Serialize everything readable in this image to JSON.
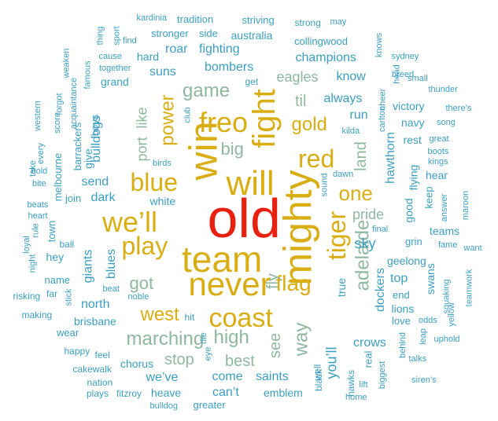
{
  "palette": {
    "red": "#e8200f",
    "gold": "#d8ae14",
    "sage": "#8fb79f",
    "teal": "#3c9ebf",
    "blue": "#5aa5c9"
  },
  "words": [
    {
      "text": "old",
      "color": "red",
      "weight": 1.0
    },
    {
      "text": "mighty",
      "color": "gold",
      "weight": 0.88
    },
    {
      "text": "team",
      "color": "gold",
      "weight": 0.82
    },
    {
      "text": "win",
      "color": "gold",
      "weight": 0.8
    },
    {
      "text": "never",
      "color": "gold",
      "weight": 0.75
    },
    {
      "text": "will",
      "color": "gold",
      "weight": 0.75
    },
    {
      "text": "fight",
      "color": "gold",
      "weight": 0.7
    },
    {
      "text": "we’ll",
      "color": "gold",
      "weight": 0.62
    },
    {
      "text": "freo",
      "color": "gold",
      "weight": 0.58
    },
    {
      "text": "coast",
      "color": "gold",
      "weight": 0.58
    },
    {
      "text": "tiger",
      "color": "gold",
      "weight": 0.58
    },
    {
      "text": "red",
      "color": "gold",
      "weight": 0.55
    },
    {
      "text": "blue",
      "color": "gold",
      "weight": 0.55
    },
    {
      "text": "play",
      "color": "gold",
      "weight": 0.55
    },
    {
      "text": "flag",
      "color": "gold",
      "weight": 0.48
    },
    {
      "text": "one",
      "color": "gold",
      "weight": 0.45
    },
    {
      "text": "game",
      "color": "sage",
      "weight": 0.45
    },
    {
      "text": "adelaide",
      "color": "sage",
      "weight": 0.44
    },
    {
      "text": "high",
      "color": "sage",
      "weight": 0.42
    },
    {
      "text": "power",
      "color": "gold",
      "weight": 0.44
    },
    {
      "text": "gold",
      "color": "gold",
      "weight": 0.42
    },
    {
      "text": "way",
      "color": "sage",
      "weight": 0.42
    },
    {
      "text": "marching",
      "color": "sage",
      "weight": 0.42
    },
    {
      "text": "west",
      "color": "gold",
      "weight": 0.4
    },
    {
      "text": "got",
      "color": "sage",
      "weight": 0.4
    },
    {
      "text": "big",
      "color": "sage",
      "weight": 0.38
    },
    {
      "text": "fly",
      "color": "sage",
      "weight": 0.36
    },
    {
      "text": "see",
      "color": "sage",
      "weight": 0.36
    },
    {
      "text": "best",
      "color": "sage",
      "weight": 0.36
    },
    {
      "text": "stop",
      "color": "sage",
      "weight": 0.34
    },
    {
      "text": "land",
      "color": "sage",
      "weight": 0.34
    },
    {
      "text": "til",
      "color": "sage",
      "weight": 0.34
    },
    {
      "text": "port",
      "color": "sage",
      "weight": 0.32
    },
    {
      "text": "like",
      "color": "sage",
      "weight": 0.32
    },
    {
      "text": "pride",
      "color": "sage",
      "weight": 0.32
    },
    {
      "text": "eagles",
      "color": "sage",
      "weight": 0.32
    },
    {
      "text": "hawthorn",
      "color": "teal",
      "weight": 0.32
    },
    {
      "text": "sky",
      "color": "teal",
      "weight": 0.3
    },
    {
      "text": "you’ll",
      "color": "teal",
      "weight": 0.32
    },
    {
      "text": "fighting",
      "color": "teal",
      "weight": 0.3
    },
    {
      "text": "bombers",
      "color": "teal",
      "weight": 0.3
    },
    {
      "text": "champions",
      "color": "teal",
      "weight": 0.28
    },
    {
      "text": "send",
      "color": "teal",
      "weight": 0.3
    },
    {
      "text": "dark",
      "color": "teal",
      "weight": 0.28
    },
    {
      "text": "north",
      "color": "teal",
      "weight": 0.28
    },
    {
      "text": "saints",
      "color": "teal",
      "weight": 0.28
    },
    {
      "text": "come",
      "color": "teal",
      "weight": 0.28
    },
    {
      "text": "we’ve",
      "color": "teal",
      "weight": 0.28
    },
    {
      "text": "can’t",
      "color": "teal",
      "weight": 0.28
    },
    {
      "text": "giants",
      "color": "teal",
      "weight": 0.28
    },
    {
      "text": "blues",
      "color": "teal",
      "weight": 0.26
    },
    {
      "text": "bulldogs",
      "color": "teal",
      "weight": 0.26
    },
    {
      "text": "crows",
      "color": "teal",
      "weight": 0.26
    },
    {
      "text": "top",
      "color": "teal",
      "weight": 0.26
    },
    {
      "text": "dockers",
      "color": "teal",
      "weight": 0.26
    },
    {
      "text": "good",
      "color": "teal",
      "weight": 0.26
    },
    {
      "text": "flying",
      "color": "teal",
      "weight": 0.26
    },
    {
      "text": "always",
      "color": "teal",
      "weight": 0.26
    },
    {
      "text": "run",
      "color": "teal",
      "weight": 0.26
    },
    {
      "text": "know",
      "color": "teal",
      "weight": 0.26
    },
    {
      "text": "roar",
      "color": "teal",
      "weight": 0.26
    },
    {
      "text": "suns",
      "color": "teal",
      "weight": 0.26
    },
    {
      "text": "true",
      "color": "teal",
      "weight": 0.26
    },
    {
      "text": "chorus",
      "color": "teal",
      "weight": 0.24
    },
    {
      "text": "brisbane",
      "color": "teal",
      "weight": 0.22
    },
    {
      "text": "heave",
      "color": "teal",
      "weight": 0.22
    },
    {
      "text": "emblem",
      "color": "teal",
      "weight": 0.22
    },
    {
      "text": "white",
      "color": "teal",
      "weight": 0.22
    },
    {
      "text": "give",
      "color": "teal",
      "weight": 0.22
    },
    {
      "text": "rest",
      "color": "teal",
      "weight": 0.22
    },
    {
      "text": "geelong",
      "color": "teal",
      "weight": 0.22
    },
    {
      "text": "hawks",
      "color": "teal",
      "weight": 0.2
    },
    {
      "text": "lions",
      "color": "teal",
      "weight": 0.2
    },
    {
      "text": "swans",
      "color": "teal",
      "weight": 0.22
    },
    {
      "text": "victory",
      "color": "teal",
      "weight": 0.22
    },
    {
      "text": "navy",
      "color": "teal",
      "weight": 0.22
    },
    {
      "text": "hard",
      "color": "teal",
      "weight": 0.22
    },
    {
      "text": "grand",
      "color": "teal",
      "weight": 0.22
    },
    {
      "text": "australia",
      "color": "teal",
      "weight": 0.22
    },
    {
      "text": "stronger",
      "color": "teal",
      "weight": 0.2
    },
    {
      "text": "tradition",
      "color": "teal",
      "weight": 0.2
    },
    {
      "text": "striving",
      "color": "teal",
      "weight": 0.2
    },
    {
      "text": "strong",
      "color": "teal",
      "weight": 0.18
    },
    {
      "text": "collingwood",
      "color": "teal",
      "weight": 0.2
    },
    {
      "text": "teams",
      "color": "teal",
      "weight": 0.2
    },
    {
      "text": "hear",
      "color": "teal",
      "weight": 0.2
    },
    {
      "text": "keep",
      "color": "teal",
      "weight": 0.2
    },
    {
      "text": "end",
      "color": "teal",
      "weight": 0.2
    },
    {
      "text": "love",
      "color": "teal",
      "weight": 0.2
    },
    {
      "text": "real",
      "color": "teal",
      "weight": 0.2
    },
    {
      "text": "well",
      "color": "teal",
      "weight": 0.18
    },
    {
      "text": "black",
      "color": "teal",
      "weight": 0.18
    },
    {
      "text": "side",
      "color": "teal",
      "weight": 0.2
    },
    {
      "text": "name",
      "color": "teal",
      "weight": 0.2
    },
    {
      "text": "hey",
      "color": "teal",
      "weight": 0.2
    },
    {
      "text": "ball",
      "color": "teal",
      "weight": 0.18
    },
    {
      "text": "join",
      "color": "teal",
      "weight": 0.18
    },
    {
      "text": "town",
      "color": "teal",
      "weight": 0.18
    },
    {
      "text": "wear",
      "color": "teal",
      "weight": 0.18
    },
    {
      "text": "happy",
      "color": "teal",
      "weight": 0.16
    },
    {
      "text": "feel",
      "color": "teal",
      "weight": 0.16
    },
    {
      "text": "cakewalk",
      "color": "teal",
      "weight": 0.16
    },
    {
      "text": "nation",
      "color": "teal",
      "weight": 0.16
    },
    {
      "text": "plays",
      "color": "teal",
      "weight": 0.16
    },
    {
      "text": "fitzroy",
      "color": "teal",
      "weight": 0.16
    },
    {
      "text": "making",
      "color": "teal",
      "weight": 0.16
    },
    {
      "text": "risking",
      "color": "teal",
      "weight": 0.16
    },
    {
      "text": "far",
      "color": "teal",
      "weight": 0.16
    },
    {
      "text": "stick",
      "color": "teal",
      "weight": 0.14
    },
    {
      "text": "beat",
      "color": "teal",
      "weight": 0.14
    },
    {
      "text": "noble",
      "color": "teal",
      "weight": 0.14
    },
    {
      "text": "hit",
      "color": "teal",
      "weight": 0.16
    },
    {
      "text": "die",
      "color": "teal",
      "weight": 0.14
    },
    {
      "text": "eye",
      "color": "teal",
      "weight": 0.14
    },
    {
      "text": "birds",
      "color": "teal",
      "weight": 0.14
    },
    {
      "text": "club",
      "color": "teal",
      "weight": 0.14
    },
    {
      "text": "get",
      "color": "teal",
      "weight": 0.16
    },
    {
      "text": "kilda",
      "color": "teal",
      "weight": 0.14
    },
    {
      "text": "dawn",
      "color": "teal",
      "weight": 0.14
    },
    {
      "text": "sound",
      "color": "teal",
      "weight": 0.14
    },
    {
      "text": "final",
      "color": "teal",
      "weight": 0.14
    },
    {
      "text": "grin",
      "color": "teal",
      "weight": 0.16
    },
    {
      "text": "odds",
      "color": "teal",
      "weight": 0.14
    },
    {
      "text": "lift",
      "color": "teal",
      "weight": 0.14
    },
    {
      "text": "home",
      "color": "teal",
      "weight": 0.16
    },
    {
      "text": "biggest",
      "color": "teal",
      "weight": 0.14
    },
    {
      "text": "behind",
      "color": "teal",
      "weight": 0.14
    },
    {
      "text": "leap",
      "color": "teal",
      "weight": 0.14
    },
    {
      "text": "talks",
      "color": "teal",
      "weight": 0.14
    },
    {
      "text": "siren’s",
      "color": "teal",
      "weight": 0.14
    },
    {
      "text": "uphold",
      "color": "teal",
      "weight": 0.14
    },
    {
      "text": "yellow",
      "color": "teal",
      "weight": 0.14
    },
    {
      "text": "squaking",
      "color": "teal",
      "weight": 0.14
    },
    {
      "text": "fame",
      "color": "teal",
      "weight": 0.14
    },
    {
      "text": "want",
      "color": "teal",
      "weight": 0.14
    },
    {
      "text": "teamwork",
      "color": "teal",
      "weight": 0.14
    },
    {
      "text": "maroon",
      "color": "teal",
      "weight": 0.14
    },
    {
      "text": "answer",
      "color": "teal",
      "weight": 0.14
    },
    {
      "text": "song",
      "color": "teal",
      "weight": 0.14
    },
    {
      "text": "kings",
      "color": "teal",
      "weight": 0.14
    },
    {
      "text": "boots",
      "color": "teal",
      "weight": 0.14
    },
    {
      "text": "great",
      "color": "teal",
      "weight": 0.14
    },
    {
      "text": "there’s",
      "color": "teal",
      "weight": 0.14
    },
    {
      "text": "thunder",
      "color": "teal",
      "weight": 0.14
    },
    {
      "text": "small",
      "color": "teal",
      "weight": 0.14
    },
    {
      "text": "head",
      "color": "teal",
      "weight": 0.14
    },
    {
      "text": "breed",
      "color": "teal",
      "weight": 0.14
    },
    {
      "text": "cheer",
      "color": "teal",
      "weight": 0.16
    },
    {
      "text": "carlton",
      "color": "teal",
      "weight": 0.14
    },
    {
      "text": "sydney",
      "color": "teal",
      "weight": 0.14
    },
    {
      "text": "knows",
      "color": "teal",
      "weight": 0.14
    },
    {
      "text": "may",
      "color": "teal",
      "weight": 0.14
    },
    {
      "text": "kardinia",
      "color": "teal",
      "weight": 0.14
    },
    {
      "text": "thing",
      "color": "teal",
      "weight": 0.14
    },
    {
      "text": "sport",
      "color": "teal",
      "weight": 0.14
    },
    {
      "text": "find",
      "color": "teal",
      "weight": 0.14
    },
    {
      "text": "cause",
      "color": "teal",
      "weight": 0.14
    },
    {
      "text": "together",
      "color": "teal",
      "weight": 0.14
    },
    {
      "text": "famous",
      "color": "teal",
      "weight": 0.14
    },
    {
      "text": "weaken",
      "color": "teal",
      "weight": 0.14
    },
    {
      "text": "acquaintance",
      "color": "teal",
      "weight": 0.14
    },
    {
      "text": "forgot",
      "color": "teal",
      "weight": 0.14
    },
    {
      "text": "score",
      "color": "teal",
      "weight": 0.14
    },
    {
      "text": "boys",
      "color": "teal",
      "weight": 0.16
    },
    {
      "text": "barrackers",
      "color": "teal",
      "weight": 0.16
    },
    {
      "text": "melbourne",
      "color": "teal",
      "weight": 0.16
    },
    {
      "text": "western",
      "color": "teal",
      "weight": 0.14
    },
    {
      "text": "every",
      "color": "teal",
      "weight": 0.14
    },
    {
      "text": "take",
      "color": "teal",
      "weight": 0.14
    },
    {
      "text": "hold",
      "color": "teal",
      "weight": 0.14
    },
    {
      "text": "bite",
      "color": "teal",
      "weight": 0.14
    },
    {
      "text": "beats",
      "color": "teal",
      "weight": 0.14
    },
    {
      "text": "heart",
      "color": "teal",
      "weight": 0.14
    },
    {
      "text": "loyal",
      "color": "teal",
      "weight": 0.14
    },
    {
      "text": "rule",
      "color": "teal",
      "weight": 0.14
    },
    {
      "text": "night",
      "color": "teal",
      "weight": 0.14
    },
    {
      "text": "bulldog",
      "color": "teal",
      "weight": 0.14
    },
    {
      "text": "greater",
      "color": "teal",
      "weight": 0.16
    }
  ]
}
